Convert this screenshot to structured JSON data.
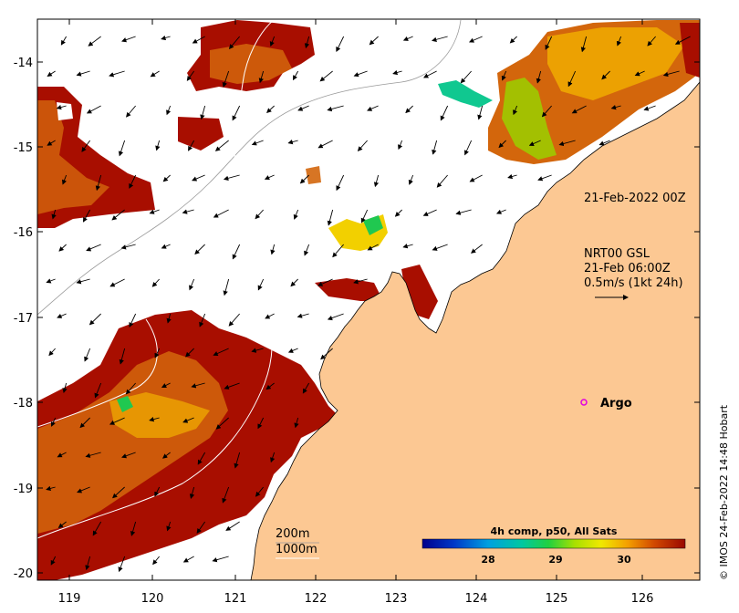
{
  "map": {
    "x_ticks": [
      "119",
      "120",
      "121",
      "122",
      "123",
      "124",
      "125",
      "126"
    ],
    "y_ticks": [
      "-14",
      "-15",
      "-16",
      "-17",
      "-18",
      "-19",
      "-20"
    ],
    "annotations": {
      "date_label": "21-Feb-2022 00Z",
      "current_title": "NRT00 GSL",
      "current_time": "21-Feb 06:00Z",
      "current_scale": "0.5m/s (1kt 24h)",
      "argo_label": "Argo",
      "contour_200": "200m",
      "contour_1000": "1000m",
      "credit": "© IMOS 24-Feb-2022 14:48 Hobart"
    },
    "colorbar": {
      "title": "4h comp, p50, All Sats",
      "ticks": [
        "28",
        "29",
        "30"
      ]
    },
    "colors": {
      "land": "#fcc893",
      "sst_hot": "#a80e00",
      "sst_warm": "#d3660c",
      "sst_mid": "#f2b000",
      "sst_cool": "#b4d800",
      "sst_cold": "#10c870",
      "argo": "#e000e0"
    }
  }
}
